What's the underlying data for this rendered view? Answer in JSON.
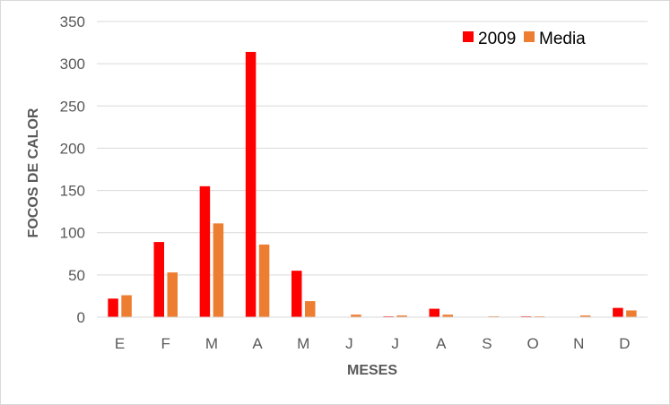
{
  "chart_data": {
    "type": "bar",
    "title": "",
    "xlabel": "MESES",
    "ylabel": "FOCOS DE CALOR",
    "ylim": [
      0,
      350
    ],
    "yticks": [
      0,
      50,
      100,
      150,
      200,
      250,
      300,
      350
    ],
    "grid": true,
    "legend_position": "top-right",
    "categories": [
      "E",
      "F",
      "M",
      "A",
      "M",
      "J",
      "J",
      "A",
      "S",
      "O",
      "N",
      "D"
    ],
    "series": [
      {
        "name": "2009",
        "color": "#ff0000",
        "values": [
          22,
          89,
          155,
          314,
          55,
          0,
          1,
          10,
          0,
          1,
          0,
          11
        ]
      },
      {
        "name": "Media",
        "color": "#ed7d31",
        "values": [
          26,
          53,
          111,
          86,
          19,
          3,
          2,
          3,
          1,
          1,
          2,
          8
        ]
      }
    ]
  }
}
